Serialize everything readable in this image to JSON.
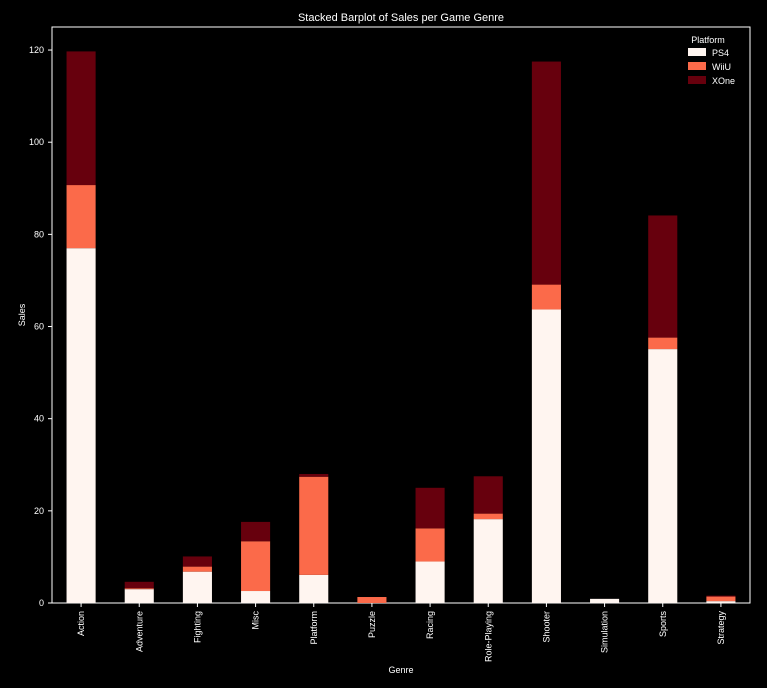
{
  "chart_data": {
    "type": "bar",
    "stacked": true,
    "title": "Stacked Barplot of Sales per Game Genre",
    "xlabel": "Genre",
    "ylabel": "Sales",
    "ylim": [
      0,
      125
    ],
    "yticks": [
      0,
      20,
      40,
      60,
      80,
      100,
      120
    ],
    "categories": [
      "Action",
      "Adventure",
      "Fighting",
      "Misc",
      "Platform",
      "Puzzle",
      "Racing",
      "Role-Playing",
      "Shooter",
      "Simulation",
      "Sports",
      "Strategy"
    ],
    "legend_title": "Platform",
    "legend_position": "top-right",
    "series": [
      {
        "name": "PS4",
        "color": "#fff5f0",
        "values": [
          77.0,
          3.0,
          6.8,
          2.6,
          6.1,
          0.0,
          9.0,
          18.2,
          63.7,
          0.9,
          55.1,
          0.4
        ]
      },
      {
        "name": "WiiU",
        "color": "#fb6a4a",
        "values": [
          13.7,
          0.2,
          1.1,
          10.8,
          21.3,
          1.3,
          7.2,
          1.2,
          5.4,
          0.0,
          2.5,
          1.0
        ]
      },
      {
        "name": "XOne",
        "color": "#67000d",
        "values": [
          29.0,
          1.4,
          2.2,
          4.2,
          0.6,
          0.0,
          8.8,
          8.1,
          48.4,
          0.0,
          26.5,
          0.2
        ]
      }
    ]
  }
}
